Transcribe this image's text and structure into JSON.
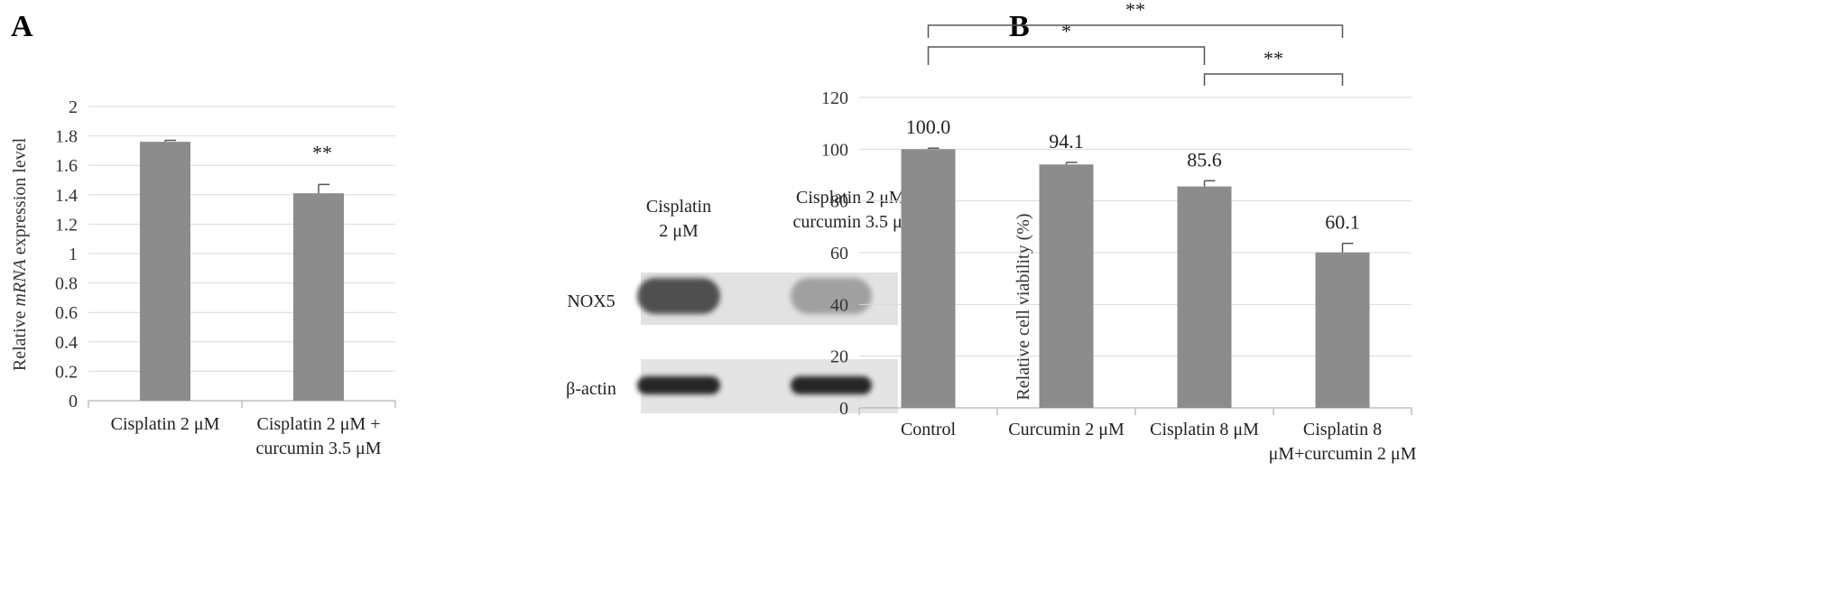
{
  "panels": [
    {
      "letter": "A"
    },
    {
      "letter": "B"
    }
  ],
  "chart_data": [
    {
      "type": "bar",
      "panel": "A",
      "categories": [
        "Cisplatin 2 μM",
        "Cisplatin 2 μM + curcumin 3.5 μM"
      ],
      "category_lines": [
        [
          "Cisplatin 2 μM"
        ],
        [
          "Cisplatin 2 μM +",
          "curcumin 3.5 μM"
        ]
      ],
      "values": [
        1.76,
        1.41
      ],
      "errors": [
        0.01,
        0.06
      ],
      "ylabel_parts": [
        "Relative ",
        "mRNA",
        " expression level"
      ],
      "ylim": [
        0,
        2
      ],
      "yticks": [
        "0",
        "0.2",
        "0.4",
        "0.6",
        "0.8",
        "1",
        "1.2",
        "1.4",
        "1.6",
        "1.8",
        "2"
      ],
      "grid": true,
      "annotations": [
        {
          "text": "**",
          "category_index": 1
        }
      ],
      "bar_color": "#8c8c8c"
    },
    {
      "type": "bar",
      "panel": "B",
      "categories": [
        "Control",
        "Curcumin 2 μM",
        "Cisplatin 8 μM",
        "Cisplatin 8 μM+curcumin 2 μM"
      ],
      "category_lines": [
        [
          "Control"
        ],
        [
          "Curcumin 2 μM"
        ],
        [
          "Cisplatin 8 μM"
        ],
        [
          "Cisplatin 8",
          "μM+curcumin 2 μM"
        ]
      ],
      "values": [
        100.0,
        94.1,
        85.6,
        60.1
      ],
      "value_labels": [
        "100.0",
        "94.1",
        "85.6",
        "60.1"
      ],
      "errors": [
        0.4,
        0.8,
        2.2,
        3.5
      ],
      "ylabel": "Relative cell viability (%)",
      "ylim": [
        0,
        120
      ],
      "yticks": [
        "0",
        "20",
        "40",
        "60",
        "80",
        "100",
        "120"
      ],
      "grid": true,
      "significance": [
        {
          "from": 0,
          "to": 3,
          "text": "**"
        },
        {
          "from": 0,
          "to": 2,
          "text": "*"
        },
        {
          "from": 2,
          "to": 3,
          "text": "**"
        }
      ],
      "bar_color": "#8c8c8c"
    }
  ],
  "blot": {
    "lane_labels": [
      [
        "Cisplatin",
        "2 μM"
      ],
      [
        "Cisplatin 2 μM+",
        "curcumin 3.5 μM"
      ]
    ],
    "rows": [
      {
        "label": "NOX5",
        "band_intensity": [
          0.75,
          0.35
        ]
      },
      {
        "label": "β-actin",
        "band_intensity": [
          0.95,
          0.95
        ]
      }
    ]
  }
}
